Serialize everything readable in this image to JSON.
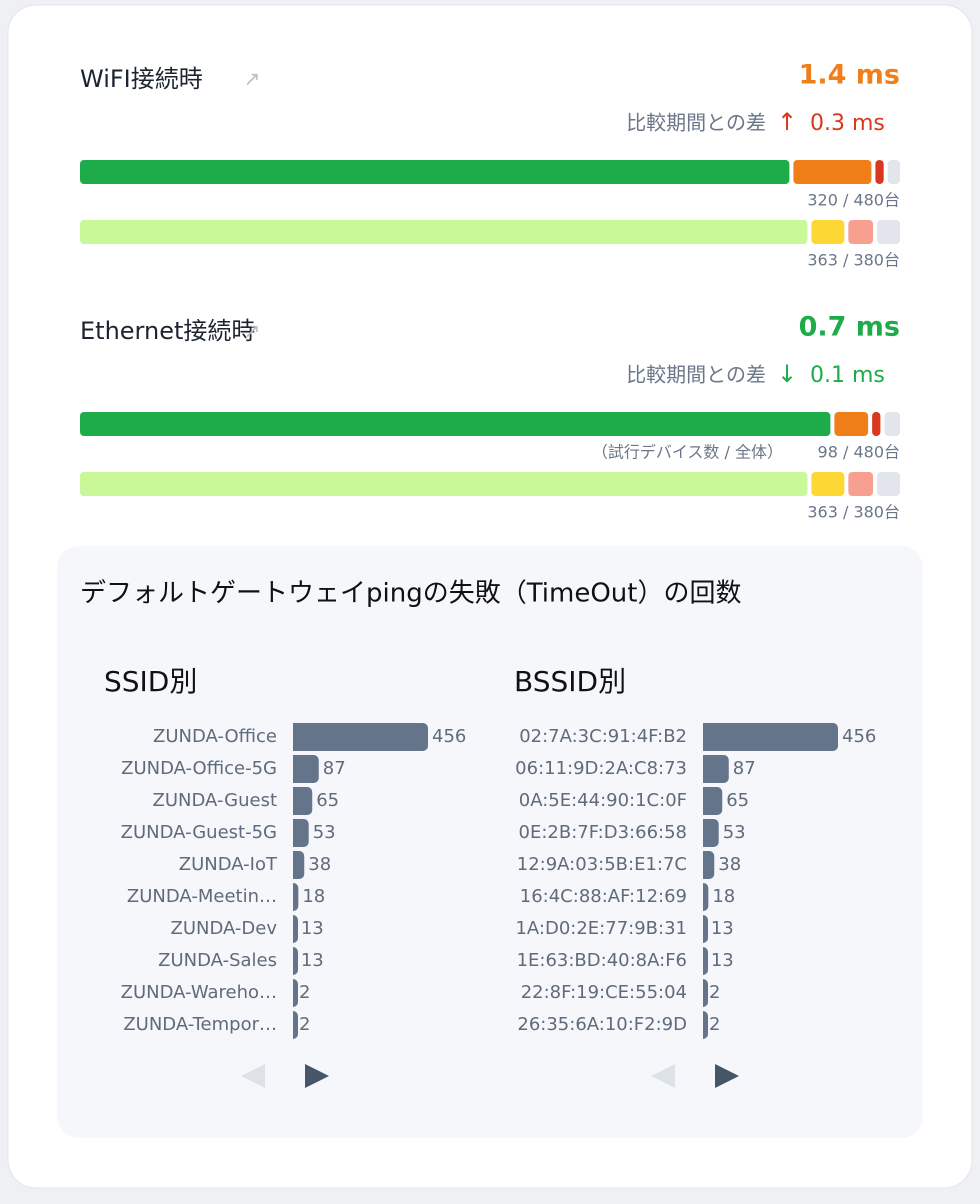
{
  "sections": [
    {
      "title": "WiFI接続時",
      "value": "1.4 ms",
      "value_color": "#f07f1a",
      "diff_label": "比較期間との差",
      "diff_arrow": "↑",
      "diff_value": "0.3 ms",
      "diff_color": "#d9381e",
      "bars": [
        {
          "segments": [
            87,
            10,
            1.5,
            1.5
          ],
          "colors": [
            "#1eab4a",
            "#f07f1a",
            "#d9381e",
            "#e2e6ec"
          ],
          "caption": "320 / 480台"
        },
        {
          "segments": [
            89.2,
            4.5,
            3.5,
            2.8
          ],
          "colors": [
            "#c8f898",
            "#fdd835",
            "#f7a090",
            "#e2e6ec"
          ],
          "caption": "363 / 380台"
        }
      ]
    },
    {
      "title": "Ethernet接続時",
      "value": "0.7 ms",
      "value_color": "#1eab4a",
      "diff_label": "比較期間との差",
      "diff_arrow": "↓",
      "diff_value": "0.1 ms",
      "diff_color": "#1eab4a",
      "bars": [
        {
          "segments": [
            92,
            4.6,
            1.5,
            1.9
          ],
          "colors": [
            "#1eab4a",
            "#f07f1a",
            "#d9381e",
            "#e2e6ec"
          ],
          "caption_note": "（試行デバイス数 / 全体）",
          "caption": "98 / 480台"
        },
        {
          "segments": [
            89.2,
            4.5,
            3.5,
            2.8
          ],
          "colors": [
            "#c8f898",
            "#fdd835",
            "#f7a090",
            "#e2e6ec"
          ],
          "caption": "363 / 380台"
        }
      ]
    }
  ],
  "ping": {
    "title": "デフォルトゲートウェイpingの失敗（TimeOut）の回数",
    "bar_color": "#64748b",
    "charts": [
      {
        "title": "SSID別",
        "categories": [
          "ZUNDA-Office",
          "ZUNDA-Office-5G",
          "ZUNDA-Guest",
          "ZUNDA-Guest-5G",
          "ZUNDA-IoT",
          "ZUNDA-Meetin…",
          "ZUNDA-Dev",
          "ZUNDA-Sales",
          "ZUNDA-Wareho…",
          "ZUNDA-Tempor…"
        ],
        "values": [
          456,
          87,
          65,
          53,
          38,
          18,
          13,
          13,
          2,
          2
        ]
      },
      {
        "title": "BSSID別",
        "categories": [
          "02:7A:3C:91:4F:B2",
          "06:11:9D:2A:C8:73",
          "0A:5E:44:90:1C:0F",
          "0E:2B:7F:D3:66:58",
          "12:9A:03:5B:E1:7C",
          "16:4C:88:AF:12:69",
          "1A:D0:2E:77:9B:31",
          "1E:63:BD:40:8A:F6",
          "22:8F:19:CE:55:04",
          "26:35:6A:10:F2:9D"
        ],
        "values": [
          456,
          87,
          65,
          53,
          38,
          18,
          13,
          13,
          2,
          2
        ]
      }
    ]
  }
}
